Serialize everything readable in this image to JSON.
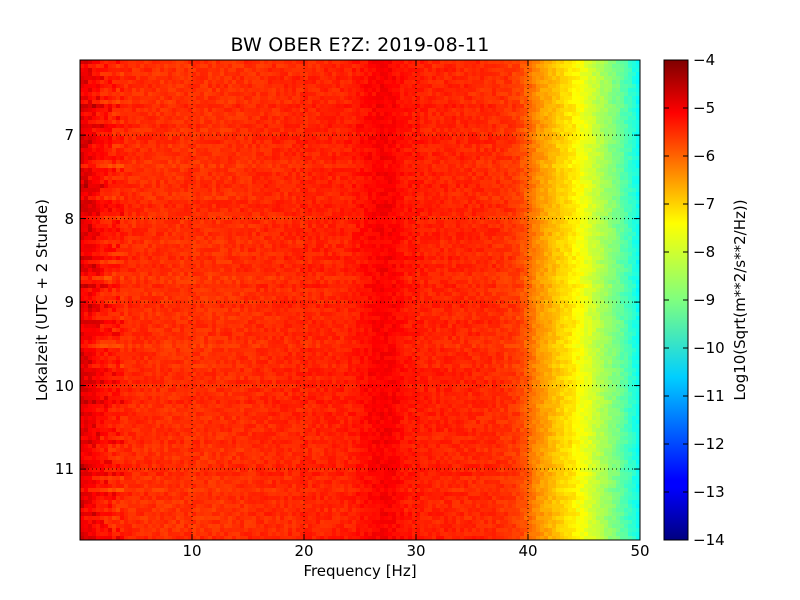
{
  "chart_data": {
    "type": "heatmap",
    "title": "BW OBER E?Z: 2019-08-11",
    "xlabel": "Frequency [Hz]",
    "ylabel": "Lokalzeit (UTC + 2 Stunde)",
    "xlim": [
      0,
      50
    ],
    "ylim": [
      11.85,
      6.1
    ],
    "y_inverted": true,
    "xticks": [
      10,
      20,
      30,
      40,
      50
    ],
    "yticks": [
      7,
      8,
      9,
      10,
      11
    ],
    "grid": true,
    "colormap": "jet",
    "colorbar": {
      "label": "Log10(Sqrt(m**2/s**2/Hz))",
      "range": [
        -14,
        -4
      ],
      "ticks": [
        -4,
        -5,
        -6,
        -7,
        -8,
        -9,
        -10,
        -11,
        -12,
        -13,
        -14
      ]
    },
    "z_profile_by_frequency": {
      "frequency_hz": [
        0,
        1,
        2,
        3,
        5,
        8,
        12,
        16,
        20,
        24,
        26,
        27,
        28,
        29,
        31,
        34,
        37,
        39,
        40,
        41,
        42,
        43,
        44,
        45,
        46,
        47,
        48,
        49,
        50
      ],
      "log10_amplitude": [
        -5.0,
        -5.2,
        -5.45,
        -5.6,
        -5.65,
        -5.7,
        -5.7,
        -5.65,
        -5.6,
        -5.55,
        -5.3,
        -5.2,
        -5.25,
        -5.45,
        -5.55,
        -5.6,
        -5.65,
        -5.8,
        -6.2,
        -6.7,
        -7.0,
        -7.3,
        -7.55,
        -7.9,
        -8.3,
        -8.7,
        -9.1,
        -9.6,
        -10.2
      ]
    }
  }
}
